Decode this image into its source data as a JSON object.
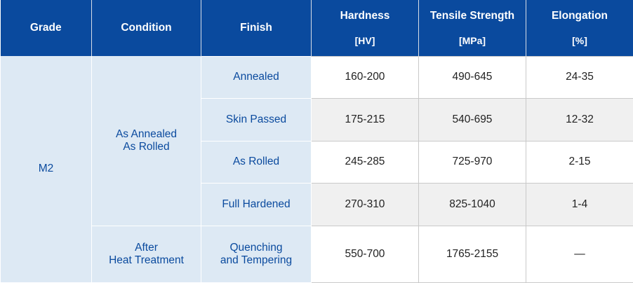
{
  "headers": {
    "grade": "Grade",
    "condition": "Condition",
    "finish": "Finish",
    "hardness": "Hardness",
    "hardness_unit": "[HV]",
    "tensile": "Tensile Strength",
    "tensile_unit": "[MPa]",
    "elongation": "Elongation",
    "elongation_unit": "[%]"
  },
  "grade": "M2",
  "conditions": [
    {
      "line1": "As Annealed",
      "line2": "As Rolled"
    },
    {
      "line1": "After",
      "line2": "Heat Treatment"
    }
  ],
  "rows": [
    {
      "finish": "Annealed",
      "hardness": "160-200",
      "tensile": "490-645",
      "elongation": "24-35"
    },
    {
      "finish": "Skin Passed",
      "hardness": "175-215",
      "tensile": "540-695",
      "elongation": "12-32"
    },
    {
      "finish": "As Rolled",
      "hardness": "245-285",
      "tensile": "725-970",
      "elongation": "2-15"
    },
    {
      "finish": "Full Hardened",
      "hardness": "270-310",
      "tensile": "825-1040",
      "elongation": "1-4"
    },
    {
      "finish_line1": "Quenching",
      "finish_line2": "and Tempering",
      "hardness": "550-700",
      "tensile": "1765-2155",
      "elongation": "—"
    }
  ],
  "colors": {
    "header_bg": "#0a4a9e",
    "label_bg": "#dde9f4",
    "label_text": "#0a4a9e",
    "alt_row_bg": "#f0f0f0"
  }
}
